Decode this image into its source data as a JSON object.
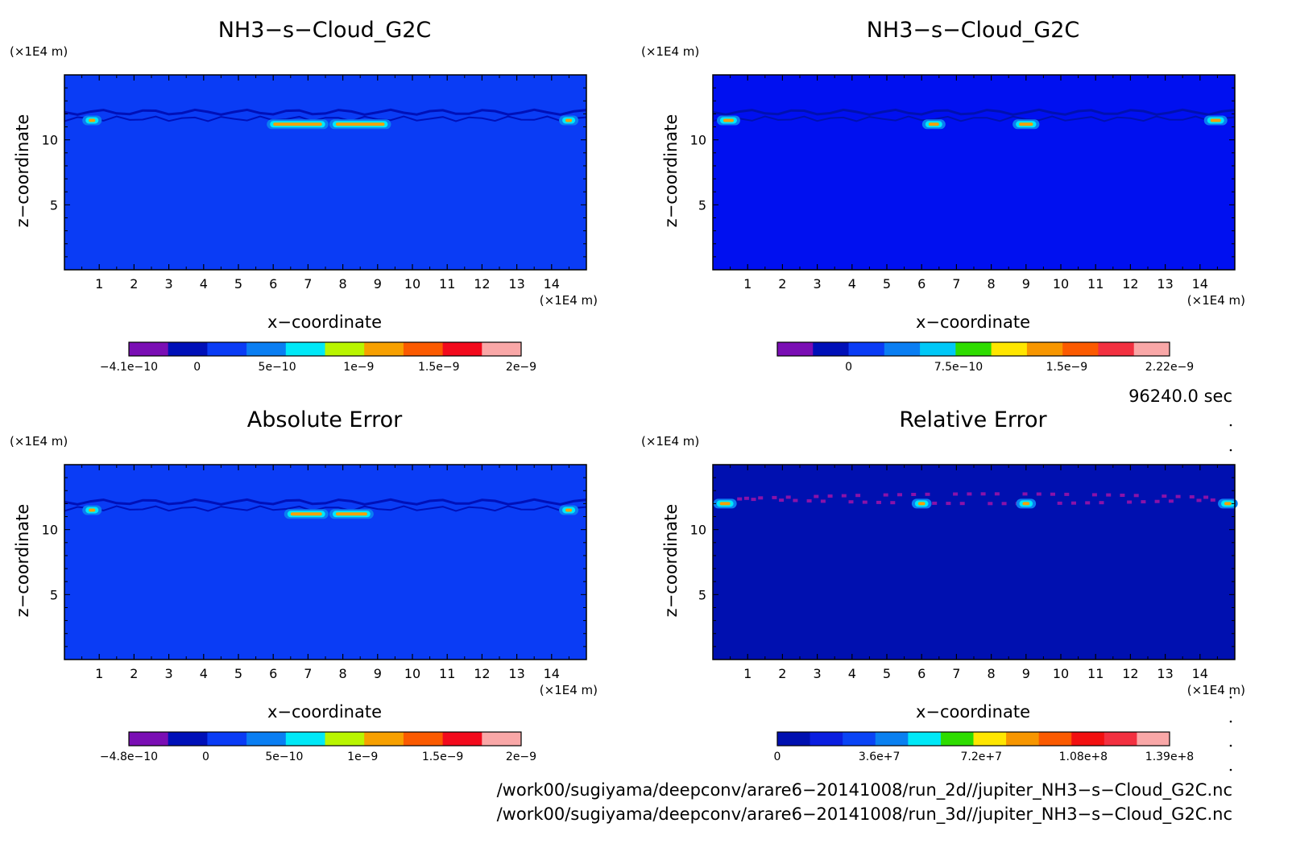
{
  "panels": [
    {
      "id": "p1",
      "title": "NH3−s−Cloud_G2C",
      "z_unit": "(×1E4 m)",
      "x_unit": "(×1E4 m)",
      "xlabel": "x−coordinate",
      "ylabel": "z−coordinate",
      "colorbar": {
        "colors": [
          "#7a0eb4",
          "#0010b8",
          "#0a3cf5",
          "#0a7ef2",
          "#00e8f7",
          "#b9f500",
          "#f7a000",
          "#fb5a00",
          "#f20a1c",
          "#f9a7a7"
        ],
        "labels": [
          {
            "text": "−4.1e−10",
            "pos": 0.0
          },
          {
            "text": "0",
            "pos": 0.174
          },
          {
            "text": "5e−10",
            "pos": 0.378
          },
          {
            "text": "1e−9",
            "pos": 0.586
          },
          {
            "text": "1.5e−9",
            "pos": 0.79
          },
          {
            "text": "2e−9",
            "pos": 1.0
          }
        ]
      }
    },
    {
      "id": "p2",
      "title": "NH3−s−Cloud_G2C",
      "z_unit": "(×1E4 m)",
      "x_unit": "(×1E4 m)",
      "xlabel": "x−coordinate",
      "ylabel": "z−coordinate",
      "colorbar": {
        "colors": [
          "#7a0eb4",
          "#0010b8",
          "#0a3cf5",
          "#0a7ef2",
          "#00c8f7",
          "#2edc00",
          "#ffe600",
          "#f79600",
          "#fb5a00",
          "#f23040",
          "#f9a7a7"
        ],
        "labels": [
          {
            "text": "0",
            "pos": 0.182
          },
          {
            "text": "7.5e−10",
            "pos": 0.462
          },
          {
            "text": "1.5e−9",
            "pos": 0.738
          },
          {
            "text": "2.22e−9",
            "pos": 1.0
          }
        ]
      }
    },
    {
      "id": "p3",
      "title": "Absolute Error",
      "z_unit": "(×1E4 m)",
      "x_unit": "(×1E4 m)",
      "xlabel": "x−coordinate",
      "ylabel": "z−coordinate",
      "colorbar": {
        "colors": [
          "#7a0eb4",
          "#0010b8",
          "#0a3cf5",
          "#0a7ef2",
          "#00e8f7",
          "#b9f500",
          "#f7a000",
          "#fb5a00",
          "#f20a1c",
          "#f9a7a7"
        ],
        "labels": [
          {
            "text": "−4.8e−10",
            "pos": 0.0
          },
          {
            "text": "0",
            "pos": 0.196
          },
          {
            "text": "5e−10",
            "pos": 0.396
          },
          {
            "text": "1e−9",
            "pos": 0.596
          },
          {
            "text": "1.5e−9",
            "pos": 0.8
          },
          {
            "text": "2e−9",
            "pos": 1.0
          }
        ]
      }
    },
    {
      "id": "p4",
      "title": "Relative Error",
      "z_unit": "(×1E4 m)",
      "x_unit": "(×1E4 m)",
      "xlabel": "x−coordinate",
      "ylabel": "z−coordinate",
      "colorbar": {
        "colors": [
          "#0010b0",
          "#0a1ee0",
          "#0a44f5",
          "#0a80f0",
          "#00e8f7",
          "#2edc00",
          "#ffe600",
          "#f79600",
          "#fb5a00",
          "#f21010",
          "#f23040",
          "#f9a7a7"
        ],
        "labels": [
          {
            "text": "0",
            "pos": 0.0
          },
          {
            "text": "3.6e+7",
            "pos": 0.26
          },
          {
            "text": "7.2e+7",
            "pos": 0.52
          },
          {
            "text": "1.08e+8",
            "pos": 0.78
          },
          {
            "text": "1.39e+8",
            "pos": 1.0
          }
        ]
      }
    }
  ],
  "time_label": "96240.0 sec",
  "file_paths": [
    "/work00/sugiyama/deepconv/arare6−20141008/run_2d//jupiter_NH3−s−Cloud_G2C.nc",
    "/work00/sugiyama/deepconv/arare6−20141008/run_3d//jupiter_NH3−s−Cloud_G2C.nc"
  ],
  "chart_data": [
    {
      "type": "heatmap",
      "title": "NH3−s−Cloud_G2C",
      "xlabel": "x−coordinate",
      "ylabel": "z−coordinate",
      "x_unit": "(×1E4 m)",
      "z_unit": "(×1E4 m)",
      "xlim": [
        0,
        15
      ],
      "ylim": [
        0,
        15
      ],
      "xticks": [
        "1",
        "2",
        "3",
        "4",
        "5",
        "6",
        "7",
        "8",
        "9",
        "10",
        "11",
        "12",
        "13",
        "14"
      ],
      "yticks": [
        "5",
        "10"
      ],
      "background_level": "0 to 5e−10",
      "colors": {
        "background": "#0a3cf5",
        "layer": "#0010b8"
      },
      "layer_z": [
        11.5,
        12.5
      ],
      "features": [
        {
          "x": [
            6.0,
            7.4
          ],
          "z": 11.2,
          "peak": 2e-09
        },
        {
          "x": [
            7.8,
            9.2
          ],
          "z": 11.2,
          "peak": 2e-09
        },
        {
          "x": [
            0.7,
            0.7
          ],
          "z": 11.5,
          "peak": 1.5e-09
        },
        {
          "x": [
            14.4,
            14.4
          ],
          "z": 11.5,
          "peak": 1.5e-09
        }
      ]
    },
    {
      "type": "heatmap",
      "title": "NH3−s−Cloud_G2C",
      "xlabel": "x−coordinate",
      "ylabel": "z−coordinate",
      "x_unit": "(×1E4 m)",
      "z_unit": "(×1E4 m)",
      "xlim": [
        0,
        15
      ],
      "ylim": [
        0,
        15
      ],
      "xticks": [
        "1",
        "2",
        "3",
        "4",
        "5",
        "6",
        "7",
        "8",
        "9",
        "10",
        "11",
        "12",
        "13",
        "14"
      ],
      "yticks": [
        "5",
        "10"
      ],
      "colors": {
        "background": "#0010f0",
        "layer": "#0010b0"
      },
      "layer_z": [
        11.5,
        12.5
      ],
      "features": [
        {
          "x": [
            6.2,
            6.5
          ],
          "z": 11.2,
          "peak": 2.22e-09
        },
        {
          "x": [
            8.8,
            9.2
          ],
          "z": 11.2,
          "peak": 2.22e-09
        },
        {
          "x": [
            0.3,
            0.6
          ],
          "z": 11.5,
          "peak": 1.5e-09
        },
        {
          "x": [
            14.3,
            14.6
          ],
          "z": 11.5,
          "peak": 7.5e-10
        }
      ]
    },
    {
      "type": "heatmap",
      "title": "Absolute Error",
      "xlabel": "x−coordinate",
      "ylabel": "z−coordinate",
      "x_unit": "(×1E4 m)",
      "z_unit": "(×1E4 m)",
      "xlim": [
        0,
        15
      ],
      "ylim": [
        0,
        15
      ],
      "xticks": [
        "1",
        "2",
        "3",
        "4",
        "5",
        "6",
        "7",
        "8",
        "9",
        "10",
        "11",
        "12",
        "13",
        "14"
      ],
      "yticks": [
        "5",
        "10"
      ],
      "colors": {
        "background": "#0a3cf5",
        "layer": "#0010b8"
      },
      "layer_z": [
        11.5,
        12.5
      ],
      "features": [
        {
          "x": [
            6.5,
            7.4
          ],
          "z": 11.2,
          "peak": 2e-09
        },
        {
          "x": [
            7.8,
            8.7
          ],
          "z": 11.2,
          "peak": 2e-09
        },
        {
          "x": [
            0.7,
            0.7
          ],
          "z": 11.5,
          "peak": 1.5e-09
        },
        {
          "x": [
            14.4,
            14.4
          ],
          "z": 11.5,
          "peak": 1.5e-09
        }
      ]
    },
    {
      "type": "heatmap",
      "title": "Relative Error",
      "xlabel": "x−coordinate",
      "ylabel": "z−coordinate",
      "x_unit": "(×1E4 m)",
      "z_unit": "(×1E4 m)",
      "xlim": [
        0,
        15
      ],
      "ylim": [
        0,
        15
      ],
      "xticks": [
        "1",
        "2",
        "3",
        "4",
        "5",
        "6",
        "7",
        "8",
        "9",
        "10",
        "11",
        "12",
        "13",
        "14"
      ],
      "yticks": [
        "5",
        "10"
      ],
      "colors": {
        "background": "#0010b0",
        "speckle": "#8a12a8"
      },
      "speckle_z": [
        12.0,
        13.0
      ],
      "features": [
        {
          "x": [
            0.2,
            0.5
          ],
          "z": 12.0,
          "peak": 100000000.0
        },
        {
          "x": [
            5.9,
            6.1
          ],
          "z": 12.0,
          "peak": 72000000.0
        },
        {
          "x": [
            8.9,
            9.1
          ],
          "z": 12.0,
          "peak": 72000000.0
        },
        {
          "x": [
            14.7,
            14.9
          ],
          "z": 12.0,
          "peak": 100000000.0
        }
      ]
    }
  ]
}
